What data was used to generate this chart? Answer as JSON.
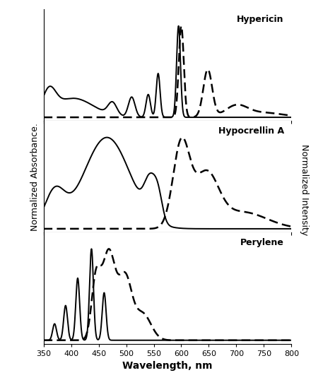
{
  "title_top": "Hypericin",
  "title_mid": "Hypocrellin A",
  "title_bot": "Perylene",
  "ylabel_left": "Normalized Absorbance.",
  "ylabel_right": "Normalized Intensity",
  "xlabel": "Wavelength, nm",
  "xlim": [
    350,
    800
  ],
  "xticks": [
    350,
    400,
    450,
    500,
    550,
    600,
    650,
    700,
    750,
    800
  ],
  "line_color": "black",
  "lw_solid": 1.4,
  "lw_dash": 1.8
}
